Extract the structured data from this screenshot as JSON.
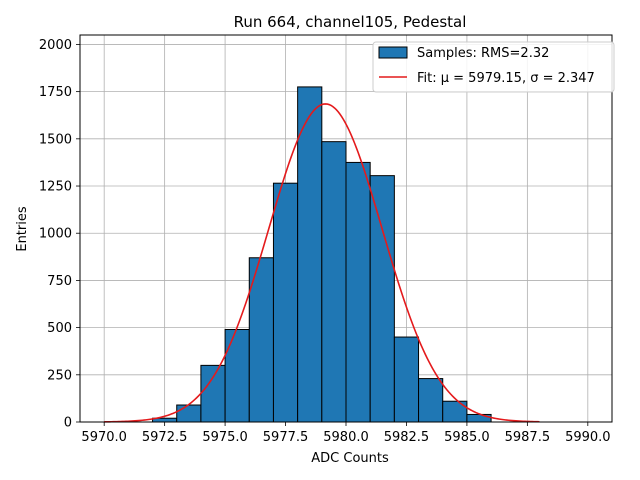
{
  "chart_data": {
    "type": "bar",
    "title": "Run 664, channel105, Pedestal",
    "xlabel": "ADC Counts",
    "ylabel": "Entries",
    "xlim": [
      5969.0,
      5991.0
    ],
    "ylim": [
      0,
      2050
    ],
    "xticks": [
      5970.0,
      5972.5,
      5975.0,
      5977.5,
      5980.0,
      5982.5,
      5985.0,
      5987.5,
      5990.0
    ],
    "xtick_labels": [
      "5970.0",
      "5972.5",
      "5975.0",
      "5977.5",
      "5980.0",
      "5982.5",
      "5985.0",
      "5987.5",
      "5990.0"
    ],
    "yticks": [
      0,
      250,
      500,
      750,
      1000,
      1250,
      1500,
      1750,
      2000
    ],
    "ytick_labels": [
      "0",
      "250",
      "500",
      "750",
      "1000",
      "1250",
      "1500",
      "1750",
      "2000"
    ],
    "grid": true,
    "legend_position": "top-right",
    "series": [
      {
        "name": "Samples: RMS=2.32",
        "kind": "histogram",
        "color": "#1f77b4",
        "edgecolor": "#000000",
        "bin_edges": [
          5972,
          5973,
          5974,
          5975,
          5976,
          5977,
          5978,
          5979,
          5980,
          5981,
          5982,
          5983,
          5984,
          5985,
          5986
        ],
        "values": [
          20,
          90,
          300,
          490,
          870,
          1265,
          1775,
          1485,
          1375,
          1305,
          450,
          230,
          110,
          40
        ]
      },
      {
        "name": "Fit: μ = 5979.15, σ = 2.347",
        "kind": "gaussian",
        "color": "#e41a1c",
        "mu": 5979.15,
        "sigma": 2.347,
        "amplitude": 1685,
        "x_range": [
          5970,
          5988
        ]
      }
    ]
  }
}
